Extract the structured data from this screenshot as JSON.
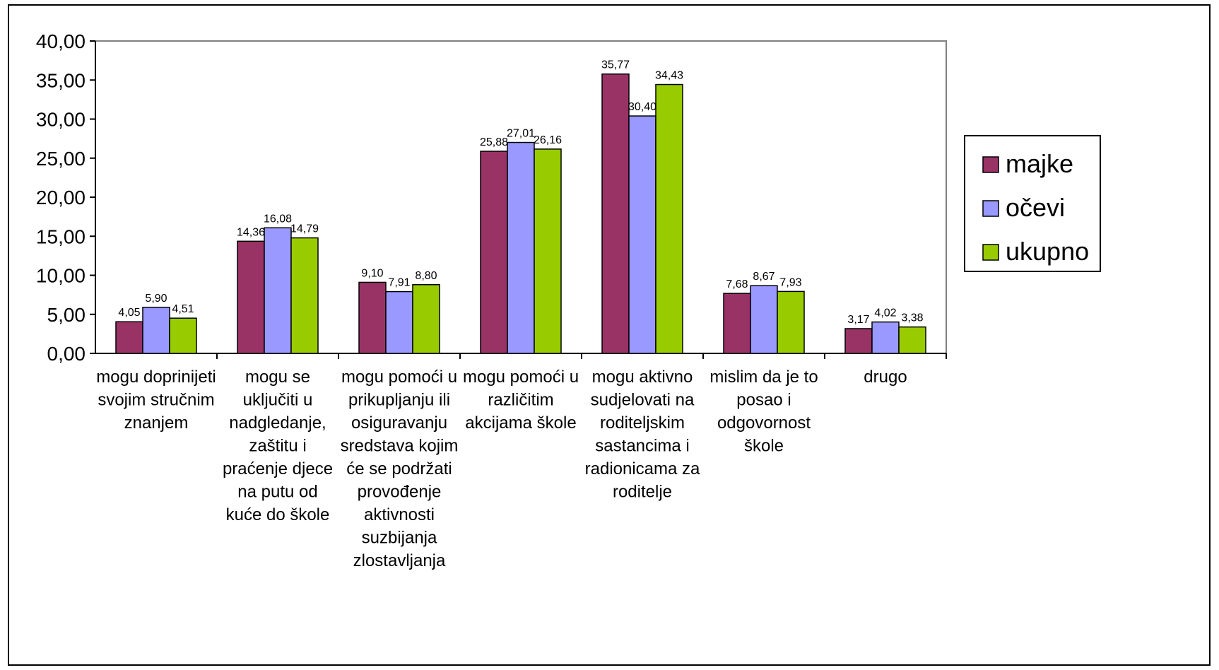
{
  "chart_data": {
    "type": "bar",
    "categories": [
      [
        "mogu doprinijeti",
        "svojim stručnim",
        "znanjem"
      ],
      [
        "mogu se",
        "uključiti u",
        "nadgledanje,",
        "zaštitu i",
        "praćenje djece",
        "na putu od",
        "kuće do škole"
      ],
      [
        "mogu pomoći u",
        "prikupljanju ili",
        "osiguravanju",
        "sredstava kojim",
        "će se podržati",
        "provođenje",
        "aktivnosti",
        "suzbijanja",
        "zlostavljanja"
      ],
      [
        "mogu pomoći u",
        "različitim",
        "akcijama škole"
      ],
      [
        "mogu aktivno",
        "sudjelovati na",
        "roditeljskim",
        "sastancima i",
        "radionicama za",
        "roditelje"
      ],
      [
        "mislim da je to",
        "posao i",
        "odgovornost",
        "škole"
      ],
      [
        "drugo"
      ]
    ],
    "series": [
      {
        "name": "majke",
        "color": "#993366",
        "values": [
          4.05,
          14.36,
          9.1,
          25.88,
          35.77,
          7.68,
          3.17
        ],
        "labels": [
          "4,05",
          "14,36",
          "9,10",
          "25,88",
          "35,77",
          "7,68",
          "3,17"
        ]
      },
      {
        "name": "očevi",
        "color": "#9999FF",
        "values": [
          5.9,
          16.08,
          7.91,
          27.01,
          30.4,
          8.67,
          4.02
        ],
        "labels": [
          "5,90",
          "16,08",
          "7,91",
          "27,01",
          "30,40",
          "8,67",
          "4,02"
        ]
      },
      {
        "name": "ukupno",
        "color": "#99CC00",
        "values": [
          4.51,
          14.79,
          8.8,
          26.16,
          34.43,
          7.93,
          3.38
        ],
        "labels": [
          "4,51",
          "14,79",
          "8,80",
          "26,16",
          "34,43",
          "7,93",
          "3,38"
        ]
      }
    ],
    "yticks": [
      "0,00",
      "5,00",
      "10,00",
      "15,00",
      "20,00",
      "25,00",
      "30,00",
      "35,00",
      "40,00"
    ],
    "ylim": [
      0,
      40
    ],
    "title": "",
    "xlabel": "",
    "ylabel": "",
    "grid": false,
    "legend_position": "right"
  }
}
